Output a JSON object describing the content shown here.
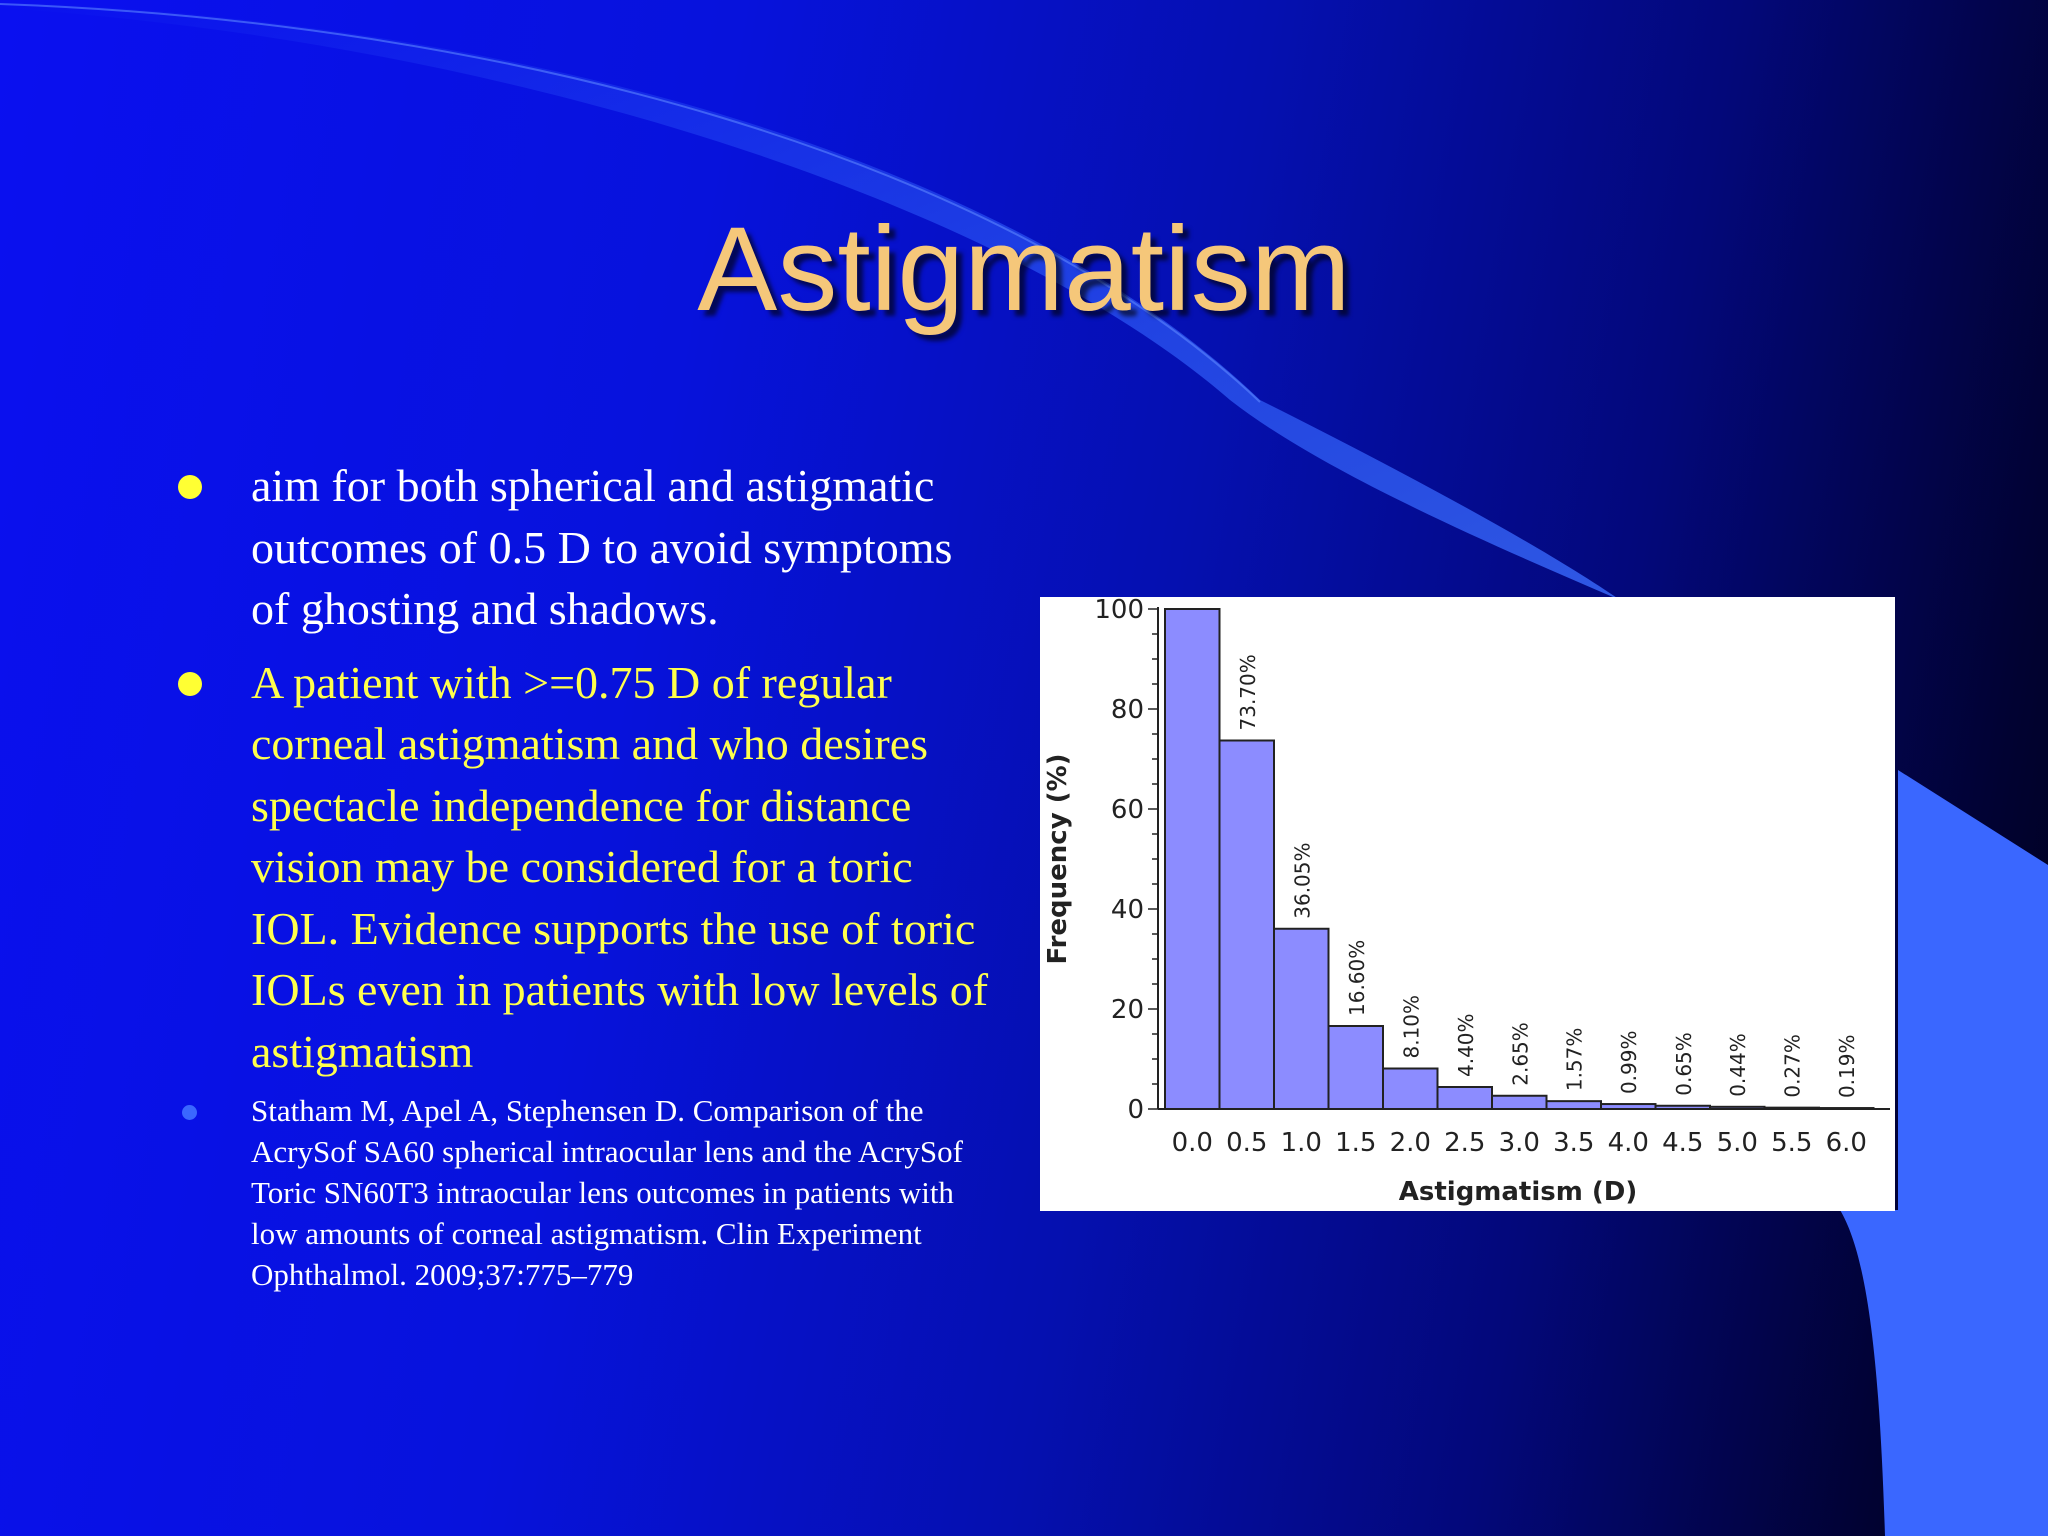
{
  "slide": {
    "title": "Astigmatism",
    "bullets": [
      {
        "text": "aim for both spherical and astigmatic outcomes of   0.5 D to avoid symptoms of ghosting and shadows."
      },
      {
        "text": "A patient with >=0.75 D of regular corneal astigmatism and who desires spectacle independence for distance vision may be considered for a toric IOL. Evidence supports the use of toric IOLs even in patients with low levels of astigmatism"
      },
      {
        "text": "Statham M, Apel A, Stephensen D. Comparison of the AcrySof SA60 spherical intraocular lens and the AcrySof Toric SN60T3 intraocular lens outcomes in patients with low amounts of corneal astigmatism. Clin Experiment Ophthalmol. 2009;37:775–779"
      }
    ]
  },
  "colors": {
    "title": "#f5c77a",
    "bullet_white": "#ffffff",
    "bullet_yellow": "#ffff4d",
    "bar_fill": "#8c8cff",
    "bar_stroke": "#222222",
    "accent_blue": "#3a67ff"
  },
  "chart_data": {
    "type": "bar",
    "categories": [
      "0.0",
      "0.5",
      "1.0",
      "1.5",
      "2.0",
      "2.5",
      "3.0",
      "3.5",
      "4.0",
      "4.5",
      "5.0",
      "5.5",
      "6.0"
    ],
    "values": [
      100,
      73.7,
      36.05,
      16.6,
      8.1,
      4.4,
      2.65,
      1.57,
      0.99,
      0.65,
      0.44,
      0.27,
      0.19
    ],
    "data_labels": [
      "",
      "73.70%",
      "36.05%",
      "16.60%",
      "8.10%",
      "4.40%",
      "2.65%",
      "1.57%",
      "0.99%",
      "0.65%",
      "0.44%",
      "0.27%",
      "0.19%"
    ],
    "xlabel": "Astigmatism (D)",
    "ylabel": "Frequency (%)",
    "ylim": [
      0,
      100
    ],
    "yticks": [
      0,
      20,
      40,
      60,
      80,
      100
    ],
    "grid": false,
    "legend": "none"
  }
}
